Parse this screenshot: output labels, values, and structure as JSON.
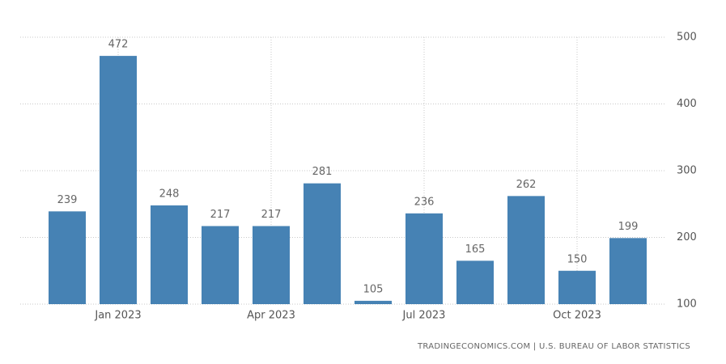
{
  "chart_data": {
    "type": "bar",
    "categories": [
      null,
      "Jan 2023",
      null,
      null,
      "Apr 2023",
      null,
      null,
      "Jul 2023",
      null,
      null,
      "Oct 2023",
      null
    ],
    "values": [
      239,
      472,
      248,
      217,
      217,
      281,
      105,
      236,
      165,
      262,
      150,
      199
    ],
    "color": "#4682b4",
    "ylim": [
      100,
      500
    ],
    "yticks": [
      100,
      200,
      300,
      400,
      500
    ],
    "grid": true,
    "source": "TRADINGECONOMICS.COM | U.S. BUREAU OF LABOR STATISTICS"
  }
}
